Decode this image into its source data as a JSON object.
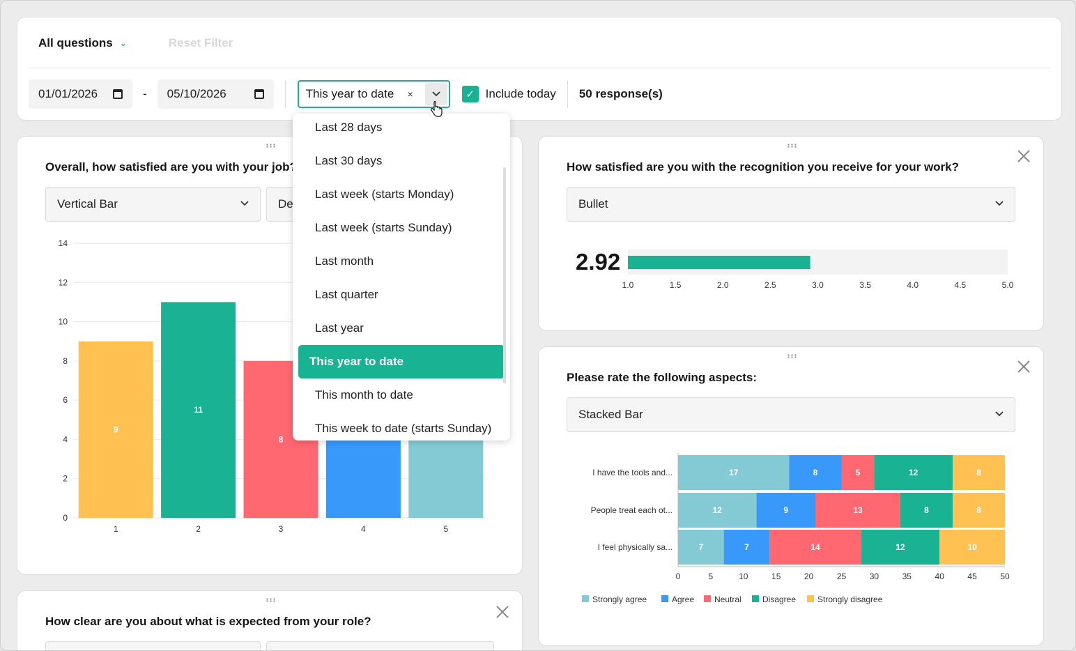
{
  "toolbar": {
    "all_questions_label": "All questions",
    "reset_filter_label": "Reset Filter",
    "date_from": "01/01/2026",
    "date_separator": "-",
    "date_to": "05/10/2026",
    "period_value": "This year to date",
    "clear_glyph": "×",
    "include_today_label": "Include today",
    "include_today_checked": true,
    "responses_label": "50 response(s)"
  },
  "dropdown": {
    "selected_index": 7,
    "options": [
      "Last 28 days",
      "Last 30 days",
      "Last week (starts Monday)",
      "Last week (starts Sunday)",
      "Last month",
      "Last quarter",
      "Last year",
      "This year to date",
      "This month to date",
      "This week to date (starts Sunday)"
    ]
  },
  "cards": {
    "job": {
      "title": "Overall, how satisfied are you with your job?",
      "chart_type_label": "Vertical Bar",
      "second_select_label": "De"
    },
    "recognition": {
      "title": "How satisfied are you with the recognition you receive for your work?",
      "chart_type_label": "Bullet",
      "value_label": "2.92"
    },
    "aspects": {
      "title": "Please rate the following aspects:",
      "chart_type_label": "Stacked Bar"
    },
    "role": {
      "title": "How clear are you about what is expected from your role?"
    }
  },
  "colors": {
    "accent": "#19b394",
    "yellow": "#ffc152",
    "green": "#19b394",
    "red": "#ff6771",
    "blue": "#3999fb",
    "teal": "#84cad4"
  },
  "chart_data": [
    {
      "type": "bar",
      "categories": [
        "1",
        "2",
        "3",
        "4",
        "5"
      ],
      "values": [
        9,
        11,
        8,
        11,
        11
      ],
      "bar_colors": [
        "#ffc152",
        "#19b394",
        "#ff6771",
        "#3999fb",
        "#84cad4"
      ],
      "data_labels": [
        "9",
        "11",
        "8",
        "",
        ""
      ],
      "ylim": [
        0,
        14
      ],
      "yticks": [
        "0",
        "2",
        "4",
        "6",
        "8",
        "10",
        "12",
        "14"
      ],
      "grid": true
    },
    {
      "type": "bar",
      "subtype": "bullet",
      "value": 2.92,
      "xlim": [
        1,
        5
      ],
      "xticks": [
        "1.0",
        "1.5",
        "2.0",
        "2.5",
        "3.0",
        "3.5",
        "4.0",
        "4.5",
        "5.0"
      ]
    },
    {
      "type": "bar",
      "subtype": "stacked-horizontal",
      "categories": [
        "I have the tools and...",
        "People treat each ot...",
        "I feel physically sa..."
      ],
      "series": [
        {
          "name": "Strongly agree",
          "color": "#84cad4",
          "values": [
            17,
            12,
            7
          ]
        },
        {
          "name": "Agree",
          "color": "#3999fb",
          "values": [
            8,
            9,
            7
          ]
        },
        {
          "name": "Neutral",
          "color": "#ff6771",
          "values": [
            5,
            13,
            14
          ]
        },
        {
          "name": "Disagree",
          "color": "#19b394",
          "values": [
            12,
            8,
            12
          ]
        },
        {
          "name": "Strongly disagree",
          "color": "#ffc152",
          "values": [
            8,
            8,
            10
          ]
        }
      ],
      "xlim": [
        0,
        50
      ],
      "xticks": [
        "0",
        "5",
        "10",
        "15",
        "20",
        "25",
        "30",
        "35",
        "40",
        "45",
        "50"
      ],
      "legend_position": "bottom-left"
    }
  ]
}
